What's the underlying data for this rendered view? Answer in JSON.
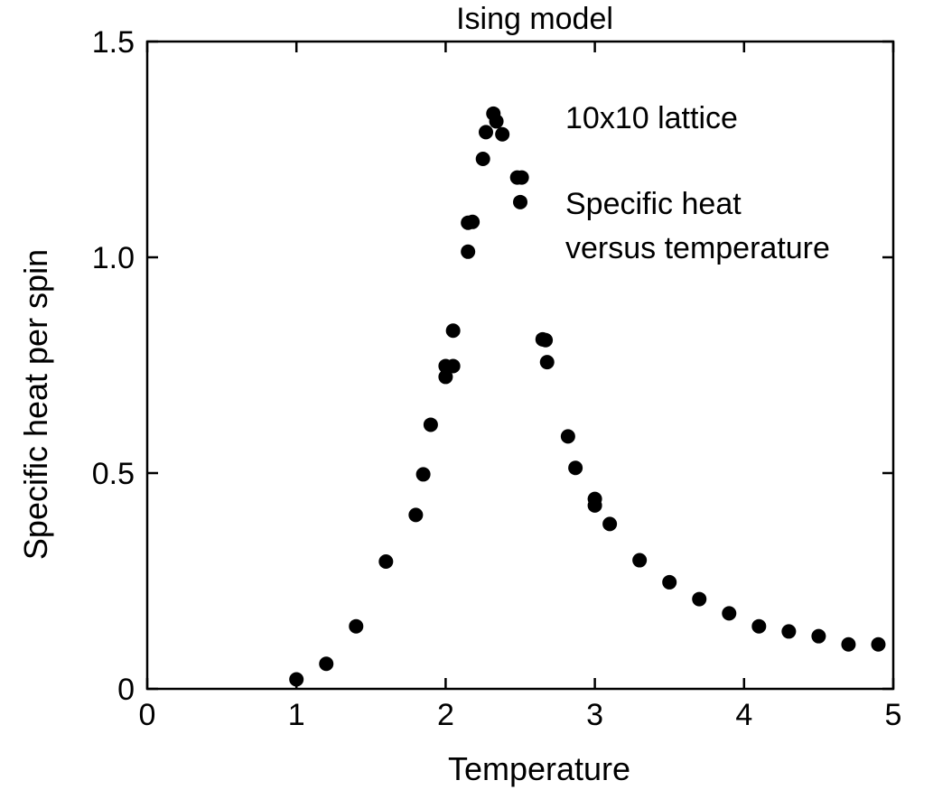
{
  "chart_data": {
    "type": "scatter",
    "title": "Ising model",
    "xlabel": "Temperature",
    "ylabel": "Specific heat per spin",
    "xlim": [
      0,
      5
    ],
    "ylim": [
      0,
      1.5
    ],
    "x_ticks": [
      {
        "value": 0,
        "label": "0"
      },
      {
        "value": 1,
        "label": "1"
      },
      {
        "value": 2,
        "label": "2"
      },
      {
        "value": 3,
        "label": "3"
      },
      {
        "value": 4,
        "label": "4"
      },
      {
        "value": 5,
        "label": "5"
      }
    ],
    "y_ticks": [
      {
        "value": 0,
        "label": "0"
      },
      {
        "value": 0.5,
        "label": "0.5"
      },
      {
        "value": 1.0,
        "label": "1.0"
      },
      {
        "value": 1.5,
        "label": "1.5"
      }
    ],
    "annotations": [
      "10x10 lattice",
      "Specific heat",
      "versus temperature"
    ],
    "grid": false,
    "series": [
      {
        "marker": "circle",
        "points": [
          {
            "x": 1.0,
            "y": 0.022
          },
          {
            "x": 1.2,
            "y": 0.058
          },
          {
            "x": 1.4,
            "y": 0.145
          },
          {
            "x": 1.6,
            "y": 0.295
          },
          {
            "x": 1.8,
            "y": 0.403
          },
          {
            "x": 1.85,
            "y": 0.497
          },
          {
            "x": 1.9,
            "y": 0.612
          },
          {
            "x": 2.0,
            "y": 0.723
          },
          {
            "x": 2.0,
            "y": 0.748
          },
          {
            "x": 2.05,
            "y": 0.748
          },
          {
            "x": 2.05,
            "y": 0.83
          },
          {
            "x": 2.15,
            "y": 1.013
          },
          {
            "x": 2.15,
            "y": 1.08
          },
          {
            "x": 2.18,
            "y": 1.082
          },
          {
            "x": 2.25,
            "y": 1.228
          },
          {
            "x": 2.27,
            "y": 1.29
          },
          {
            "x": 2.32,
            "y": 1.333
          },
          {
            "x": 2.34,
            "y": 1.315
          },
          {
            "x": 2.38,
            "y": 1.285
          },
          {
            "x": 2.48,
            "y": 1.185
          },
          {
            "x": 2.51,
            "y": 1.185
          },
          {
            "x": 2.5,
            "y": 1.128
          },
          {
            "x": 2.65,
            "y": 0.81
          },
          {
            "x": 2.67,
            "y": 0.808
          },
          {
            "x": 2.68,
            "y": 0.757
          },
          {
            "x": 2.82,
            "y": 0.585
          },
          {
            "x": 2.87,
            "y": 0.512
          },
          {
            "x": 3.0,
            "y": 0.44
          },
          {
            "x": 3.0,
            "y": 0.425
          },
          {
            "x": 3.1,
            "y": 0.382
          },
          {
            "x": 3.3,
            "y": 0.298
          },
          {
            "x": 3.5,
            "y": 0.247
          },
          {
            "x": 3.7,
            "y": 0.208
          },
          {
            "x": 3.9,
            "y": 0.175
          },
          {
            "x": 4.1,
            "y": 0.145
          },
          {
            "x": 4.3,
            "y": 0.133
          },
          {
            "x": 4.5,
            "y": 0.122
          },
          {
            "x": 4.7,
            "y": 0.103
          },
          {
            "x": 4.9,
            "y": 0.103
          }
        ]
      }
    ]
  }
}
